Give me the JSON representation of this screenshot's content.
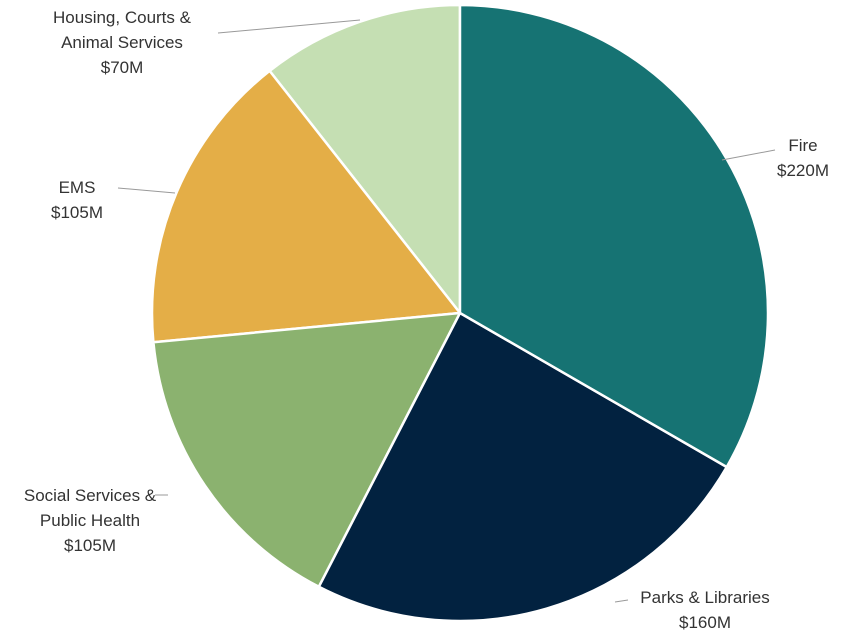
{
  "chart_data": {
    "type": "pie",
    "categories": [
      "Fire",
      "Parks & Libraries",
      "Social Services & Public Health",
      "EMS",
      "Housing, Courts & Animal Services"
    ],
    "values": [
      220,
      160,
      105,
      105,
      70
    ],
    "value_labels": [
      "$220M",
      "$160M",
      "$105M",
      "$105M",
      "$70M"
    ],
    "colors": [
      "#167373",
      "#022240",
      "#8bb26f",
      "#e4ae47",
      "#c5dfb3"
    ]
  }
}
